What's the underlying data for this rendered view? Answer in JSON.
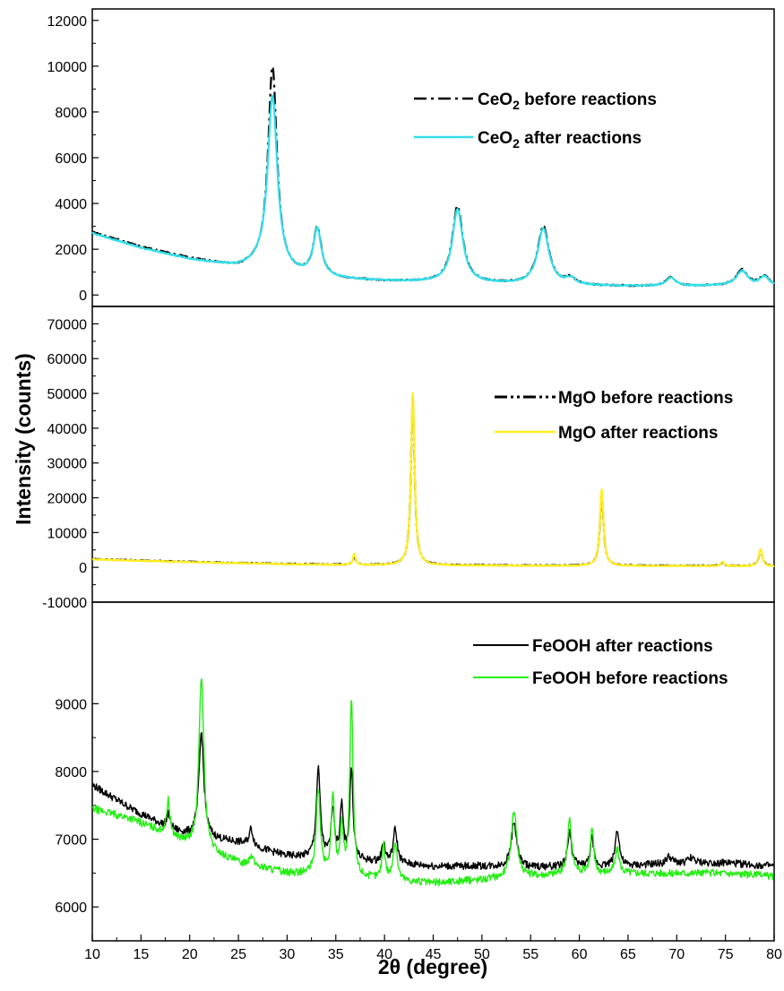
{
  "chart_data": {
    "type": "line",
    "xlabel": "2θ (degree)",
    "ylabel": "Intensity (counts)",
    "xlim": [
      10,
      80
    ],
    "x_ticks": [
      10,
      15,
      20,
      25,
      30,
      35,
      40,
      45,
      50,
      55,
      60,
      65,
      70,
      75,
      80
    ],
    "panels": [
      {
        "id": "ceo2",
        "ylim": [
          -500,
          12500
        ],
        "y_ticks": [
          0,
          2000,
          4000,
          6000,
          8000,
          10000,
          12000
        ],
        "legend_position": "top-right",
        "series": [
          {
            "name_base": "CeO",
            "name_sub": "2",
            "name_rest": " before reactions",
            "color": "#000000",
            "style": "dash-dot",
            "baseline": [
              [
                10,
                2750
              ],
              [
                15,
                2100
              ],
              [
                20,
                1600
              ],
              [
                25,
                1200
              ],
              [
                27,
                1250
              ],
              [
                30,
                900
              ],
              [
                35,
                700
              ],
              [
                40,
                600
              ],
              [
                45,
                550
              ],
              [
                50,
                500
              ],
              [
                55,
                450
              ],
              [
                60,
                400
              ],
              [
                65,
                380
              ],
              [
                70,
                380
              ],
              [
                75,
                400
              ],
              [
                80,
                350
              ]
            ],
            "peaks": [
              [
                28.5,
                8900,
                0.55
              ],
              [
                33.1,
                2100,
                0.5
              ],
              [
                47.5,
                3350,
                0.65
              ],
              [
                56.3,
                2550,
                0.7
              ],
              [
                59.1,
                280,
                0.6
              ],
              [
                69.4,
                380,
                0.6
              ],
              [
                76.7,
                700,
                0.7
              ],
              [
                79.0,
                450,
                0.6
              ]
            ]
          },
          {
            "name_base": "CeO",
            "name_sub": "2",
            "name_rest": " after reactions",
            "color": "#33dde8",
            "style": "solid",
            "baseline": [
              [
                10,
                2700
              ],
              [
                15,
                2050
              ],
              [
                20,
                1550
              ],
              [
                25,
                1200
              ],
              [
                27,
                1250
              ],
              [
                30,
                900
              ],
              [
                35,
                700
              ],
              [
                40,
                600
              ],
              [
                45,
                550
              ],
              [
                50,
                500
              ],
              [
                55,
                450
              ],
              [
                60,
                400
              ],
              [
                65,
                380
              ],
              [
                70,
                380
              ],
              [
                75,
                400
              ],
              [
                80,
                350
              ]
            ],
            "peaks": [
              [
                28.5,
                7600,
                0.6
              ],
              [
                33.1,
                2050,
                0.5
              ],
              [
                47.5,
                3200,
                0.65
              ],
              [
                56.3,
                2450,
                0.7
              ],
              [
                59.1,
                260,
                0.6
              ],
              [
                69.4,
                360,
                0.6
              ],
              [
                76.7,
                650,
                0.7
              ],
              [
                79.0,
                420,
                0.6
              ]
            ]
          }
        ]
      },
      {
        "id": "mgo",
        "ylim": [
          -10000,
          75000
        ],
        "y_ticks": [
          -10000,
          0,
          10000,
          20000,
          30000,
          40000,
          50000,
          60000,
          70000
        ],
        "legend_position": "top-right",
        "series": [
          {
            "name": "MgO before reactions",
            "color": "#000000",
            "style": "dash-dot-dot",
            "baseline": [
              [
                10,
                2400
              ],
              [
                20,
                1600
              ],
              [
                30,
                1000
              ],
              [
                35,
                800
              ],
              [
                40,
                700
              ],
              [
                50,
                600
              ],
              [
                60,
                500
              ],
              [
                70,
                500
              ],
              [
                80,
                400
              ]
            ],
            "peaks": [
              [
                36.9,
                2700,
                0.15
              ],
              [
                42.9,
                48500,
                0.22
              ],
              [
                62.3,
                21000,
                0.22
              ],
              [
                74.7,
                900,
                0.2
              ],
              [
                78.6,
                4600,
                0.22
              ]
            ]
          },
          {
            "name": "MgO after reactions",
            "color": "#ffee22",
            "style": "solid",
            "baseline": [
              [
                10,
                2300
              ],
              [
                20,
                1500
              ],
              [
                30,
                900
              ],
              [
                35,
                700
              ],
              [
                40,
                600
              ],
              [
                50,
                500
              ],
              [
                60,
                400
              ],
              [
                70,
                400
              ],
              [
                80,
                300
              ]
            ],
            "peaks": [
              [
                36.9,
                3300,
                0.15
              ],
              [
                42.9,
                49500,
                0.22
              ],
              [
                62.3,
                22000,
                0.22
              ],
              [
                74.7,
                1300,
                0.2
              ],
              [
                78.6,
                5000,
                0.22
              ]
            ]
          }
        ]
      },
      {
        "id": "feooh",
        "ylim": [
          5500,
          10500
        ],
        "y_ticks": [
          6000,
          7000,
          8000,
          9000
        ],
        "legend_position": "top-right",
        "series": [
          {
            "name": "FeOOH after reactions",
            "color": "#000000",
            "style": "solid",
            "baseline": [
              [
                10,
                7800
              ],
              [
                14,
                7450
              ],
              [
                18,
                7150
              ],
              [
                20,
                7050
              ],
              [
                25,
                6950
              ],
              [
                30,
                6750
              ],
              [
                35,
                6700
              ],
              [
                40,
                6650
              ],
              [
                45,
                6600
              ],
              [
                50,
                6600
              ],
              [
                55,
                6580
              ],
              [
                60,
                6600
              ],
              [
                65,
                6600
              ],
              [
                70,
                6650
              ],
              [
                75,
                6650
              ],
              [
                80,
                6600
              ]
            ],
            "peaks": [
              [
                17.8,
                200,
                0.2
              ],
              [
                21.2,
                1550,
                0.3
              ],
              [
                26.3,
                250,
                0.25
              ],
              [
                33.2,
                1300,
                0.25
              ],
              [
                34.7,
                750,
                0.2
              ],
              [
                35.6,
                750,
                0.2
              ],
              [
                36.6,
                1350,
                0.2
              ],
              [
                39.9,
                300,
                0.2
              ],
              [
                41.1,
                500,
                0.25
              ],
              [
                53.3,
                650,
                0.35
              ],
              [
                59.0,
                500,
                0.25
              ],
              [
                61.3,
                400,
                0.2
              ],
              [
                63.9,
                550,
                0.25
              ],
              [
                69.2,
                100,
                0.3
              ],
              [
                71.5,
                80,
                0.3
              ]
            ]
          },
          {
            "name": "FeOOH before reactions",
            "color": "#22ee11",
            "style": "solid",
            "baseline": [
              [
                10,
                7450
              ],
              [
                14,
                7300
              ],
              [
                18,
                7050
              ],
              [
                20,
                6900
              ],
              [
                25,
                6650
              ],
              [
                30,
                6500
              ],
              [
                35,
                6450
              ],
              [
                40,
                6400
              ],
              [
                45,
                6350
              ],
              [
                50,
                6400
              ],
              [
                55,
                6450
              ],
              [
                60,
                6500
              ],
              [
                65,
                6500
              ],
              [
                70,
                6500
              ],
              [
                75,
                6500
              ],
              [
                80,
                6450
              ]
            ],
            "peaks": [
              [
                17.8,
                500,
                0.2
              ],
              [
                21.2,
                2550,
                0.3
              ],
              [
                26.3,
                150,
                0.25
              ],
              [
                33.2,
                1250,
                0.25
              ],
              [
                34.7,
                1150,
                0.2
              ],
              [
                35.6,
                700,
                0.2
              ],
              [
                36.6,
                2600,
                0.2
              ],
              [
                39.9,
                500,
                0.2
              ],
              [
                41.1,
                550,
                0.25
              ],
              [
                53.3,
                1000,
                0.35
              ],
              [
                59.0,
                800,
                0.25
              ],
              [
                61.3,
                650,
                0.2
              ],
              [
                63.9,
                350,
                0.25
              ]
            ]
          }
        ]
      }
    ]
  }
}
